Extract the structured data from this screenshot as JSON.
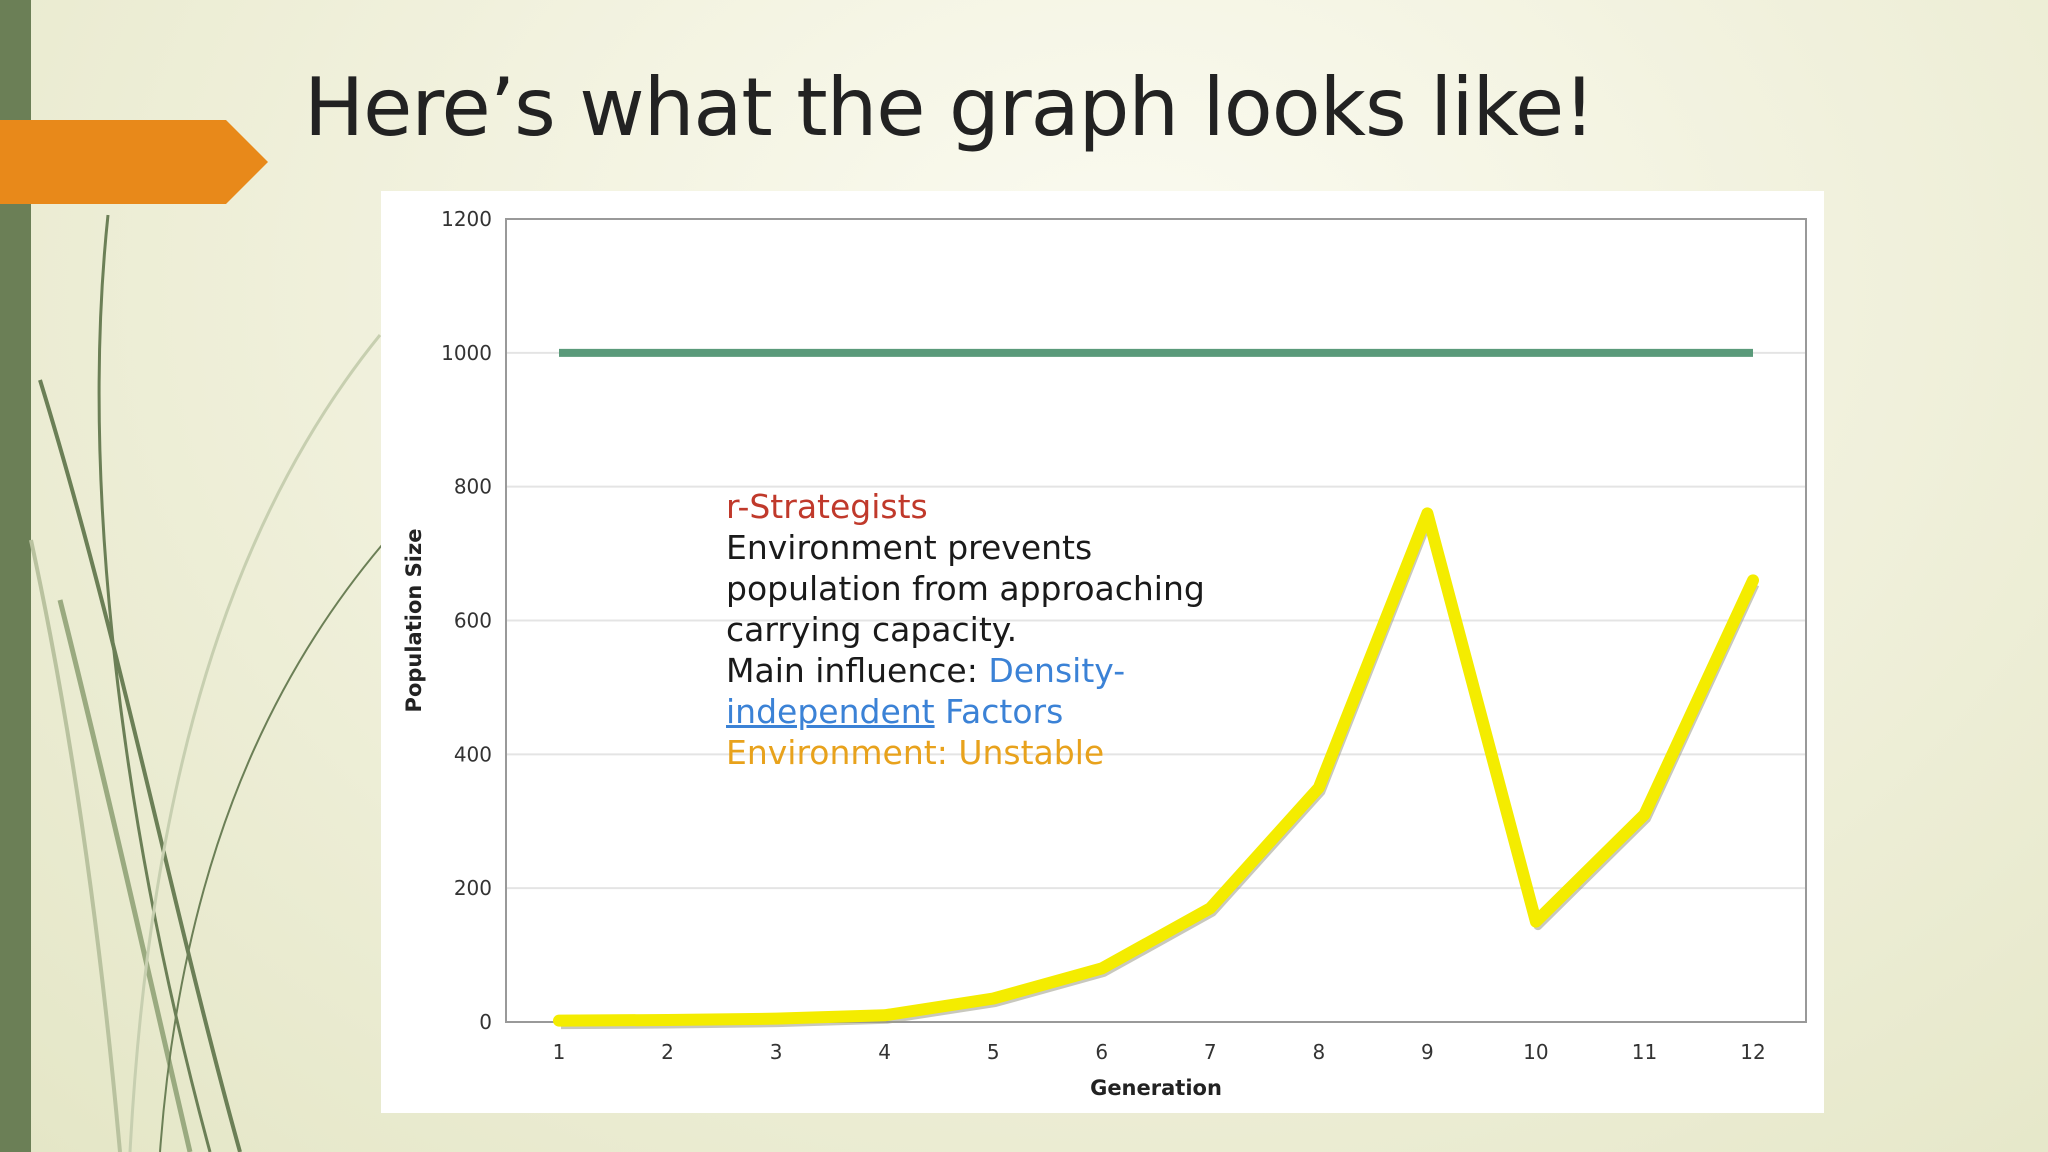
{
  "slide": {
    "title": "Here’s what the graph looks like!",
    "colors": {
      "accent_arrow": "#e8891a",
      "side_bar": "#6b7f56",
      "background": "#f1f1dd"
    }
  },
  "chart_data": {
    "type": "line",
    "xlabel": "Generation",
    "ylabel": "Population Size",
    "ylim": [
      0,
      1200
    ],
    "y_ticks": [
      0,
      200,
      400,
      600,
      800,
      1000,
      1200
    ],
    "x": [
      1,
      2,
      3,
      4,
      5,
      6,
      7,
      8,
      9,
      10,
      11,
      12
    ],
    "grid": "horizontal",
    "series": [
      {
        "values": [
          2,
          3,
          5,
          10,
          35,
          80,
          170,
          350,
          760,
          150,
          310,
          660
        ],
        "color": "#f4ec00"
      },
      {
        "values": [
          1000,
          1000,
          1000,
          1000,
          1000,
          1000,
          1000,
          1000,
          1000,
          1000,
          1000,
          1000
        ],
        "color": "#5a9a7a"
      }
    ],
    "annotation": {
      "heading": "r-Strategists",
      "line1": "Environment prevents",
      "line2": "population from approaching",
      "line3": "carrying capacity.",
      "influence_label": "Main influence: ",
      "influence_value_a": "Density-",
      "influence_value_link": "independent",
      "influence_value_b": " Factors",
      "environment": "Environment: Unstable"
    }
  }
}
